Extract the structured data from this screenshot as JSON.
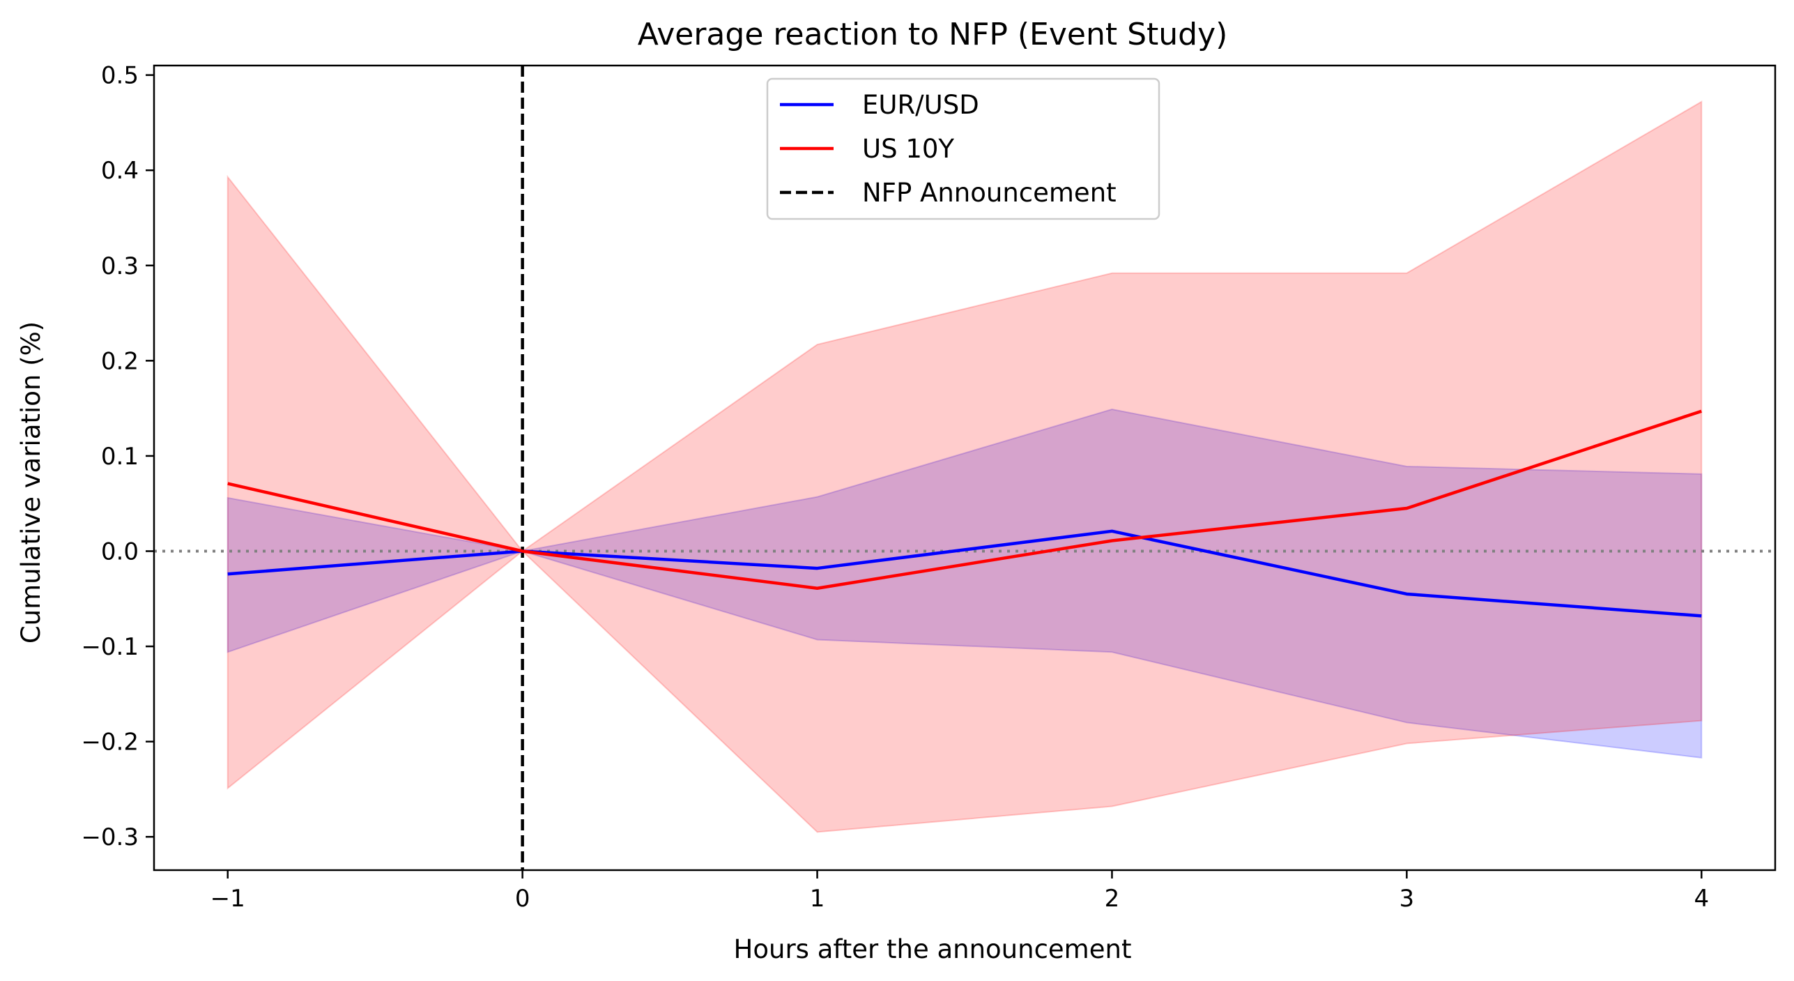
{
  "chart_data": {
    "type": "line",
    "title": "Average reaction to NFP (Event Study)",
    "xlabel": "Hours after the announcement",
    "ylabel": "Cumulative variation (%)",
    "x": [
      -1,
      0,
      1,
      2,
      3,
      4
    ],
    "xlim": [
      -1.25,
      4.25
    ],
    "ylim": [
      -0.335,
      0.51
    ],
    "x_ticks": [
      -1,
      0,
      1,
      2,
      3,
      4
    ],
    "x_tick_labels": [
      "−1",
      "0",
      "1",
      "2",
      "3",
      "4"
    ],
    "y_ticks": [
      -0.3,
      -0.2,
      -0.1,
      0.0,
      0.1,
      0.2,
      0.3,
      0.4,
      0.5
    ],
    "y_tick_labels": [
      "−0.3",
      "−0.2",
      "−0.1",
      "0.0",
      "0.1",
      "0.2",
      "0.3",
      "0.4",
      "0.5"
    ],
    "grid": false,
    "legend_position": "upper-center",
    "series": [
      {
        "name": "EUR/USD",
        "color": "#0000ff",
        "values": [
          -0.024,
          0.0,
          -0.018,
          0.021,
          -0.045,
          -0.068
        ],
        "band_lower": [
          -0.106,
          0.0,
          -0.093,
          -0.106,
          -0.18,
          -0.217
        ],
        "band_upper": [
          0.056,
          0.0,
          0.057,
          0.149,
          0.089,
          0.081
        ]
      },
      {
        "name": "US 10Y",
        "color": "#ff0000",
        "values": [
          0.071,
          0.0,
          -0.039,
          0.011,
          0.045,
          0.147
        ],
        "band_lower": [
          -0.249,
          0.0,
          -0.295,
          -0.268,
          -0.202,
          -0.178
        ],
        "band_upper": [
          0.393,
          0.0,
          0.217,
          0.292,
          0.292,
          0.472
        ]
      }
    ],
    "reference_lines": [
      {
        "name": "NFP Announcement",
        "orientation": "vertical",
        "x": 0,
        "style": "dashed",
        "color": "#000000"
      },
      {
        "orientation": "horizontal",
        "y": 0,
        "style": "dotted",
        "color": "#808080"
      }
    ],
    "legend": [
      "EUR/USD",
      "US 10Y",
      "NFP Announcement"
    ]
  }
}
